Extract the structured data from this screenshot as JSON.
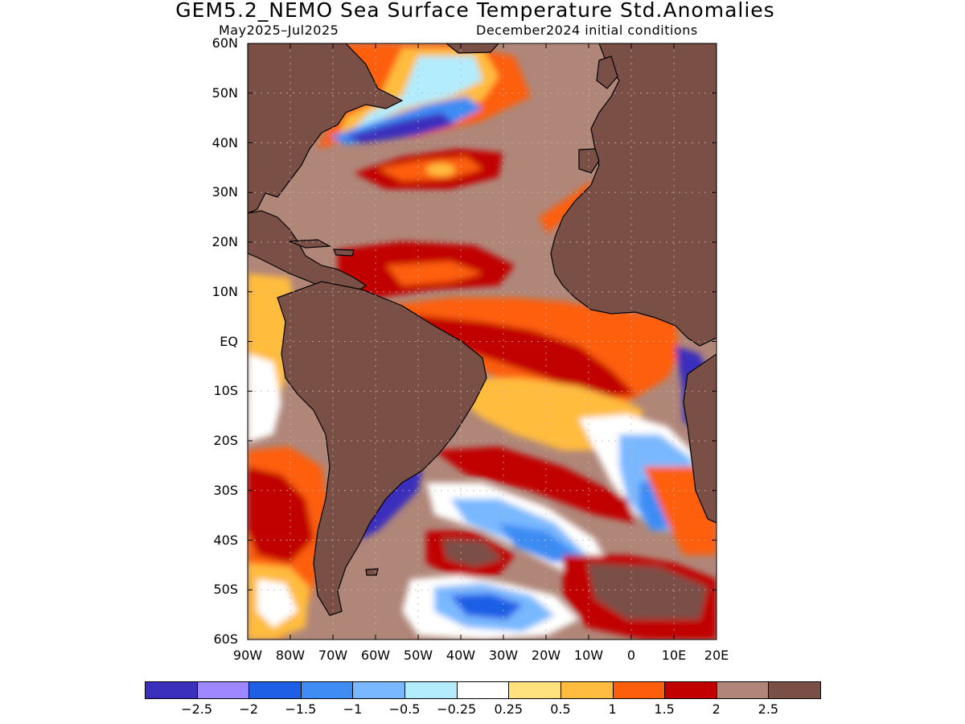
{
  "title": "GEM5.2_NEMO Sea Surface Temperature Std.Anomalies",
  "subtitle_left": "May2025–Jul2025",
  "subtitle_right": "December2024 initial conditions",
  "lat_labels": [
    "60N",
    "50N",
    "40N",
    "30N",
    "20N",
    "10N",
    "EQ",
    "10S",
    "20S",
    "30S",
    "40S",
    "50S",
    "60S"
  ],
  "lon_labels": [
    "90W",
    "80W",
    "70W",
    "60W",
    "50W",
    "40W",
    "30W",
    "20W",
    "10W",
    "0",
    "10E",
    "20E"
  ],
  "map_extent": {
    "lon": [
      -90,
      20
    ],
    "lat": [
      -60,
      60
    ]
  },
  "colorbar": {
    "colors": [
      "#3b2fbd",
      "#9f87ff",
      "#1f5fe6",
      "#3e8cf4",
      "#79b8ff",
      "#b2ecfd",
      "#ffffff",
      "#ffe27d",
      "#ffbc3e",
      "#fd5e0b",
      "#c10000",
      "#b08679",
      "#7a5046"
    ],
    "labels": [
      "−2.5",
      "−2",
      "−1.5",
      "−1",
      "−0.5",
      "−0.25",
      "0.25",
      "0.5",
      "1",
      "1.5",
      "2",
      "2.5"
    ]
  },
  "colors": {
    "land": "#7a5046",
    "coast": "#000000",
    "grid": "#c8b4a8"
  }
}
